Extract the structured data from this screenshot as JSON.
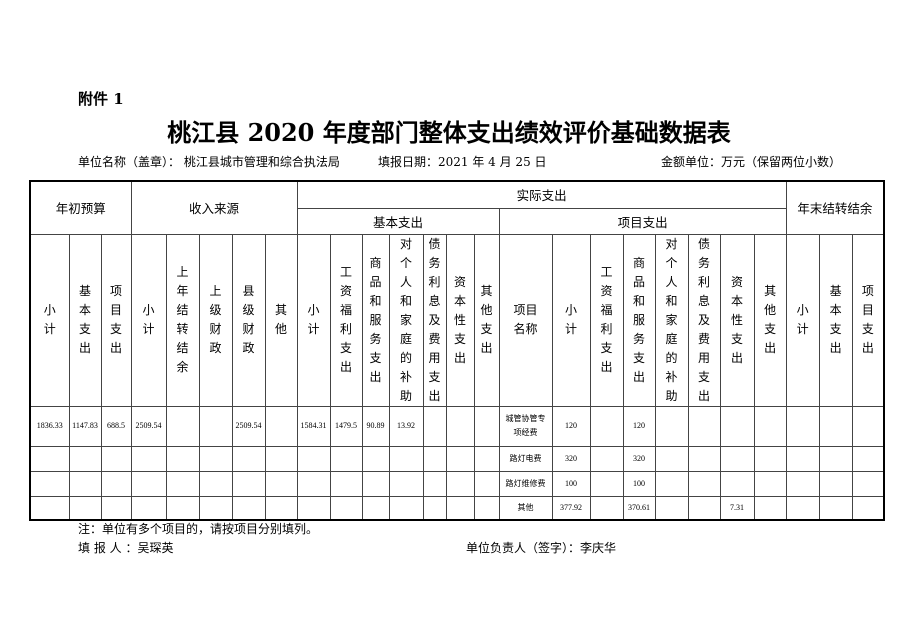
{
  "attachment": "附件 1",
  "title": "桃江县 2020 年度部门整体支出绩效评价基础数据表",
  "meta": {
    "unit": "单位名称（盖章）：  桃江县城市管理和综合执法局",
    "date": "填报日期：2021 年 4 月 25 日",
    "currency": "金额单位：万元（保留两位小数）"
  },
  "table": {
    "groups": {
      "budget": "年初预算",
      "income": "收入来源",
      "actual": "实际支出",
      "basic": "基本支出",
      "project": "项目支出",
      "carryover": "年末结转结余"
    },
    "columns": [
      "小计",
      "基本支出",
      "项目支出",
      "小计",
      "上年结转结余",
      "上级财政",
      "县级财政",
      "其他",
      "小计",
      "工资福利支出",
      "商品和服务支出",
      "对个人和家庭的补助",
      "债务利息及费用支出",
      "资本性支出",
      "其他支出",
      "项目名称",
      "小计",
      "工资福利支出",
      "商品和服务支出",
      "对个人和家庭的补助",
      "债务利息及费用支出",
      "资本性支出",
      "其他支出",
      "小计",
      "基本支出",
      "项目支出"
    ],
    "rows": [
      [
        "1836.33",
        "1147.83",
        "688.5",
        "2509.54",
        "",
        "",
        "2509.54",
        "",
        "1584.31",
        "1479.5",
        "90.89",
        "13.92",
        "",
        "",
        "",
        "城管协管专项经费",
        "120",
        "",
        "120",
        "",
        "",
        "",
        "",
        "",
        "",
        ""
      ],
      [
        "",
        "",
        "",
        "",
        "",
        "",
        "",
        "",
        "",
        "",
        "",
        "",
        "",
        "",
        "",
        "路灯电费",
        "320",
        "",
        "320",
        "",
        "",
        "",
        "",
        "",
        "",
        ""
      ],
      [
        "",
        "",
        "",
        "",
        "",
        "",
        "",
        "",
        "",
        "",
        "",
        "",
        "",
        "",
        "",
        "路灯维修费",
        "100",
        "",
        "100",
        "",
        "",
        "",
        "",
        "",
        "",
        ""
      ],
      [
        "",
        "",
        "",
        "",
        "",
        "",
        "",
        "",
        "",
        "",
        "",
        "",
        "",
        "",
        "",
        "其他",
        "377.92",
        "",
        "370.61",
        "",
        "",
        "7.31",
        "",
        "",
        "",
        ""
      ]
    ]
  },
  "footer": {
    "note": "注：单位有多个项目的，请按项目分别填列。",
    "filler": "填  报  人 ：吴琛英",
    "signer": "单位负责人（签字）：李庆华"
  }
}
